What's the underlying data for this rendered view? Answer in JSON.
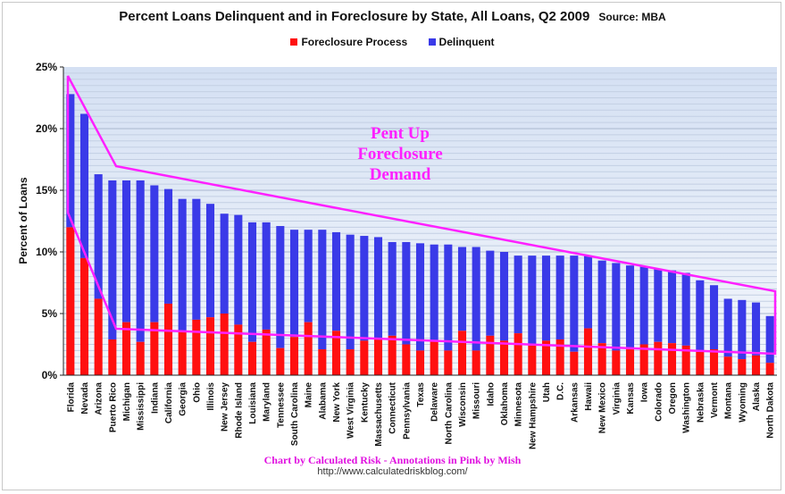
{
  "chart_data": {
    "type": "bar",
    "stacked": true,
    "title": "Percent Loans Delinquent and in Foreclosure by State, All Loans, Q2 2009",
    "source": "Source: MBA",
    "ylabel": "Percent of Loans",
    "xlabel": "",
    "ylim": [
      0,
      25
    ],
    "yticks": [
      "0%",
      "5%",
      "10%",
      "15%",
      "20%",
      "25%"
    ],
    "yticks_values": [
      0,
      5,
      10,
      15,
      20,
      25
    ],
    "legend": [
      "Foreclosure Process",
      "Delinquent"
    ],
    "colors": {
      "Foreclosure Process": "#ff1010",
      "Delinquent": "#3a3ae8"
    },
    "categories": [
      "Florida",
      "Nevada",
      "Arizona",
      "Puerto Rico",
      "Michigan",
      "Mississippi",
      "Indiana",
      "California",
      "Georgia",
      "Ohio",
      "Illinois",
      "New Jersey",
      "Rhode Island",
      "Louisiana",
      "Maryland",
      "Tennessee",
      "South Carolina",
      "Maine",
      "Alabama",
      "New York",
      "West Virginia",
      "Kentucky",
      "Massachusetts",
      "Connecticut",
      "Pennsylvania",
      "Texas",
      "Delaware",
      "North Carolina",
      "Wisconsin",
      "Missouri",
      "Idaho",
      "Oklahoma",
      "Minnesota",
      "New Hampshire",
      "Utah",
      "D.C.",
      "Arkansas",
      "Hawaii",
      "New Mexico",
      "Virginia",
      "Kansas",
      "Iowa",
      "Colorado",
      "Oregon",
      "Washington",
      "Nebraska",
      "Vermont",
      "Montana",
      "Wyoming",
      "Alaska",
      "North Dakota"
    ],
    "series": [
      {
        "name": "Foreclosure Process",
        "values": [
          12.0,
          9.5,
          6.2,
          2.9,
          4.3,
          2.7,
          4.3,
          5.8,
          3.5,
          4.5,
          4.7,
          5.0,
          4.1,
          2.7,
          3.7,
          2.2,
          3.1,
          4.3,
          2.1,
          3.6,
          2.1,
          2.8,
          3.0,
          3.2,
          2.5,
          2.0,
          2.8,
          2.0,
          3.6,
          2.0,
          3.2,
          2.8,
          3.4,
          2.4,
          2.8,
          2.9,
          1.9,
          3.8,
          2.6,
          2.0,
          2.1,
          2.5,
          2.7,
          2.6,
          2.4,
          1.9,
          2.1,
          1.5,
          1.3,
          1.6,
          1.0
        ]
      },
      {
        "name": "Delinquent",
        "values": [
          10.8,
          11.7,
          10.1,
          12.9,
          11.5,
          13.1,
          11.1,
          9.3,
          10.8,
          9.8,
          9.2,
          8.1,
          8.9,
          9.7,
          8.7,
          9.9,
          8.7,
          7.5,
          9.7,
          8.0,
          9.3,
          8.5,
          8.2,
          7.6,
          8.3,
          8.7,
          7.8,
          8.6,
          6.8,
          8.4,
          6.9,
          7.2,
          6.3,
          7.3,
          6.9,
          6.8,
          7.8,
          5.9,
          6.7,
          7.1,
          6.8,
          6.3,
          5.9,
          5.9,
          5.9,
          5.8,
          5.2,
          4.7,
          4.8,
          4.3,
          3.8
        ]
      }
    ],
    "annotation": {
      "text_lines": [
        "Pent Up",
        "Foreclosure",
        "Demand"
      ],
      "color": "#ff20ff"
    }
  },
  "credits": {
    "line1": "Chart by Calculated Risk - Annotations in Pink by Mish",
    "line2": "http://www.calculatedriskblog.com/"
  }
}
